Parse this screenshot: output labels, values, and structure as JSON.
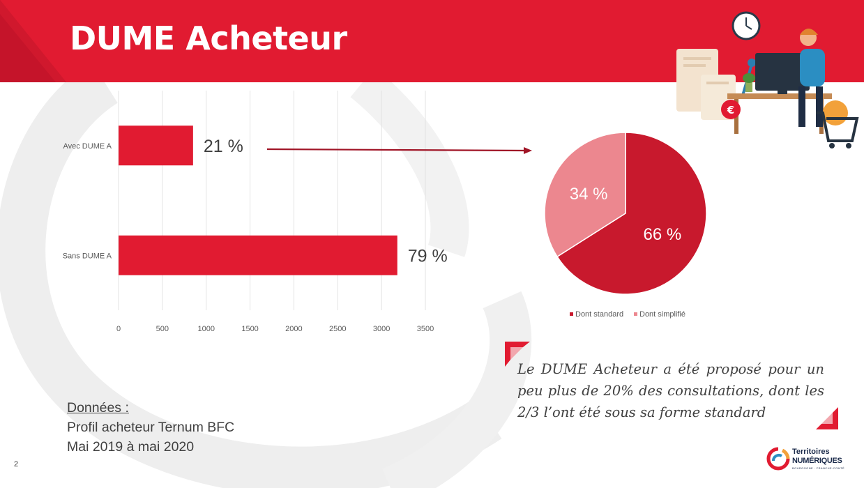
{
  "slide": {
    "title": "DUME Acheteur",
    "page_number": "2"
  },
  "colors": {
    "brand_red": "#e11b31",
    "pie_standard": "#c8192d",
    "pie_simplifie": "#ec878f"
  },
  "chart_data": [
    {
      "type": "bar",
      "orientation": "horizontal",
      "categories": [
        "Avec DUME A",
        "Sans DUME A"
      ],
      "values": [
        850,
        3180
      ],
      "value_labels": [
        "21 %",
        "79 %"
      ],
      "xlim": [
        0,
        3500
      ],
      "xticks": [
        "0",
        "500",
        "1000",
        "1500",
        "2000",
        "2500",
        "3000",
        "3500"
      ],
      "grid": true,
      "legend": "none"
    },
    {
      "type": "pie",
      "slices": [
        {
          "name": "Dont standard",
          "value": 66,
          "label": "66 %"
        },
        {
          "name": "Dont simplifié",
          "value": 34,
          "label": "34 %"
        }
      ],
      "legend": "bottom"
    }
  ],
  "source": {
    "heading": "Données :",
    "line1": "Profil acheteur Ternum BFC",
    "line2": "Mai 2019 à mai 2020"
  },
  "comment": "Le DUME Acheteur a été proposé pour un peu plus de 20% des consultations, dont les 2/3 l’ont été sous sa forme standard",
  "logo": {
    "line1": "Territoires",
    "line2": "NUMÉRIQUES",
    "line3": "BOURGOGNE · FRANCHE-COMTÉ"
  },
  "icons": [
    "clock-icon",
    "euro-coin-icon",
    "shopping-cart-icon",
    "document-icon",
    "computer-monitor-icon",
    "lamp-icon",
    "plant-icon"
  ]
}
